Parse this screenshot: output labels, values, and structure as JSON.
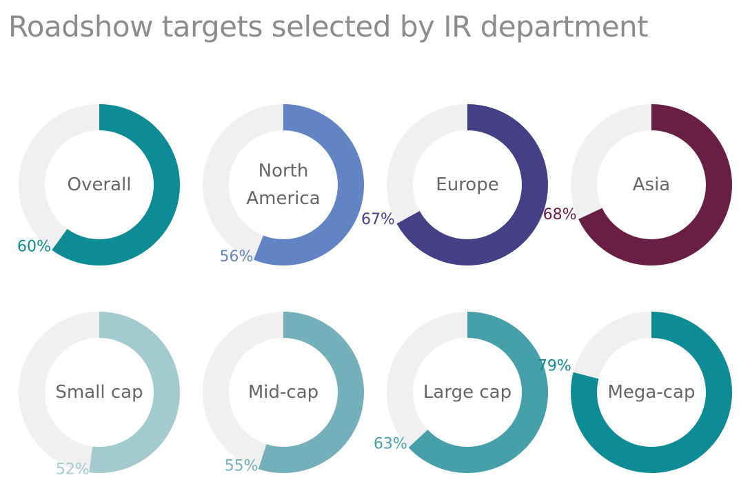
{
  "title": "Roadshow targets selected by IR department",
  "colors": {
    "track": "#f0f0f0",
    "center_text": "#666666",
    "title_text": "#8c8c8c"
  },
  "chart_data": {
    "type": "donut",
    "title": "Roadshow targets selected by IR department",
    "unit": "%",
    "series": [
      {
        "label": [
          "Overall"
        ],
        "value": 60,
        "percent_label": "60%",
        "color": "#0d8c96"
      },
      {
        "label": [
          "North",
          "America"
        ],
        "value": 56,
        "percent_label": "56%",
        "color": "#6384c4"
      },
      {
        "label": [
          "Europe"
        ],
        "value": 67,
        "percent_label": "67%",
        "color": "#453f85"
      },
      {
        "label": [
          "Asia"
        ],
        "value": 68,
        "percent_label": "68%",
        "color": "#691e44"
      },
      {
        "label": [
          "Small cap"
        ],
        "value": 52,
        "percent_label": "52%",
        "color": "#a3cbcf"
      },
      {
        "label": [
          "Mid-cap"
        ],
        "value": 55,
        "percent_label": "55%",
        "color": "#74b0ba"
      },
      {
        "label": [
          "Large cap"
        ],
        "value": 63,
        "percent_label": "63%",
        "color": "#45a0a9"
      },
      {
        "label": [
          "Mega-cap"
        ],
        "value": 79,
        "percent_label": "79%",
        "color": "#0d8c96"
      }
    ]
  }
}
